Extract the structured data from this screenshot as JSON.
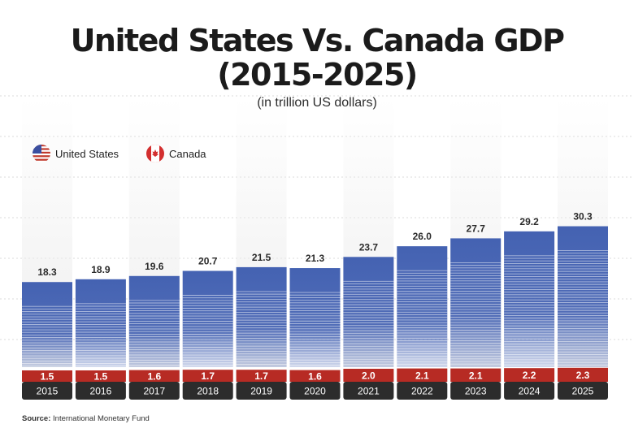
{
  "header": {
    "title_line1": "United States Vs. Canada GDP",
    "title_line2": "(2015-2025)",
    "subtitle": "(in trillion US dollars)"
  },
  "legend": {
    "us_label": "United States",
    "canada_label": "Canada"
  },
  "source": {
    "label": "Source:",
    "text": "International Monetary Fund"
  },
  "colors": {
    "us": "#4462b2",
    "canada": "#b72b24",
    "year_bg": "#2c2c2c"
  },
  "icons": {
    "us": "us-flag-icon",
    "canada": "canada-flag-icon"
  },
  "chart_data": {
    "type": "bar",
    "title": "United States Vs. Canada GDP (2015-2025)",
    "subtitle": "(in trillion US dollars)",
    "categories": [
      "2015",
      "2016",
      "2017",
      "2018",
      "2019",
      "2020",
      "2021",
      "2022",
      "2023",
      "2024",
      "2025"
    ],
    "series": [
      {
        "name": "United States",
        "values": [
          18.3,
          18.9,
          19.6,
          20.7,
          21.5,
          21.3,
          23.7,
          26.0,
          27.7,
          29.2,
          30.3
        ]
      },
      {
        "name": "Canada",
        "values": [
          1.5,
          1.5,
          1.6,
          1.7,
          1.7,
          1.6,
          2.0,
          2.1,
          2.1,
          2.2,
          2.3
        ]
      }
    ],
    "labels": {
      "United States": [
        "18.3",
        "18.9",
        "19.6",
        "20.7",
        "21.5",
        "21.3",
        "23.7",
        "26.0",
        "27.7",
        "29.2",
        "30.3"
      ],
      "Canada": [
        "1.5",
        "1.5",
        "1.6",
        "1.7",
        "1.7",
        "1.6",
        "2.0",
        "2.1",
        "2.1",
        "2.2",
        "2.3"
      ]
    },
    "grid": true,
    "legend_position": "top-left"
  }
}
